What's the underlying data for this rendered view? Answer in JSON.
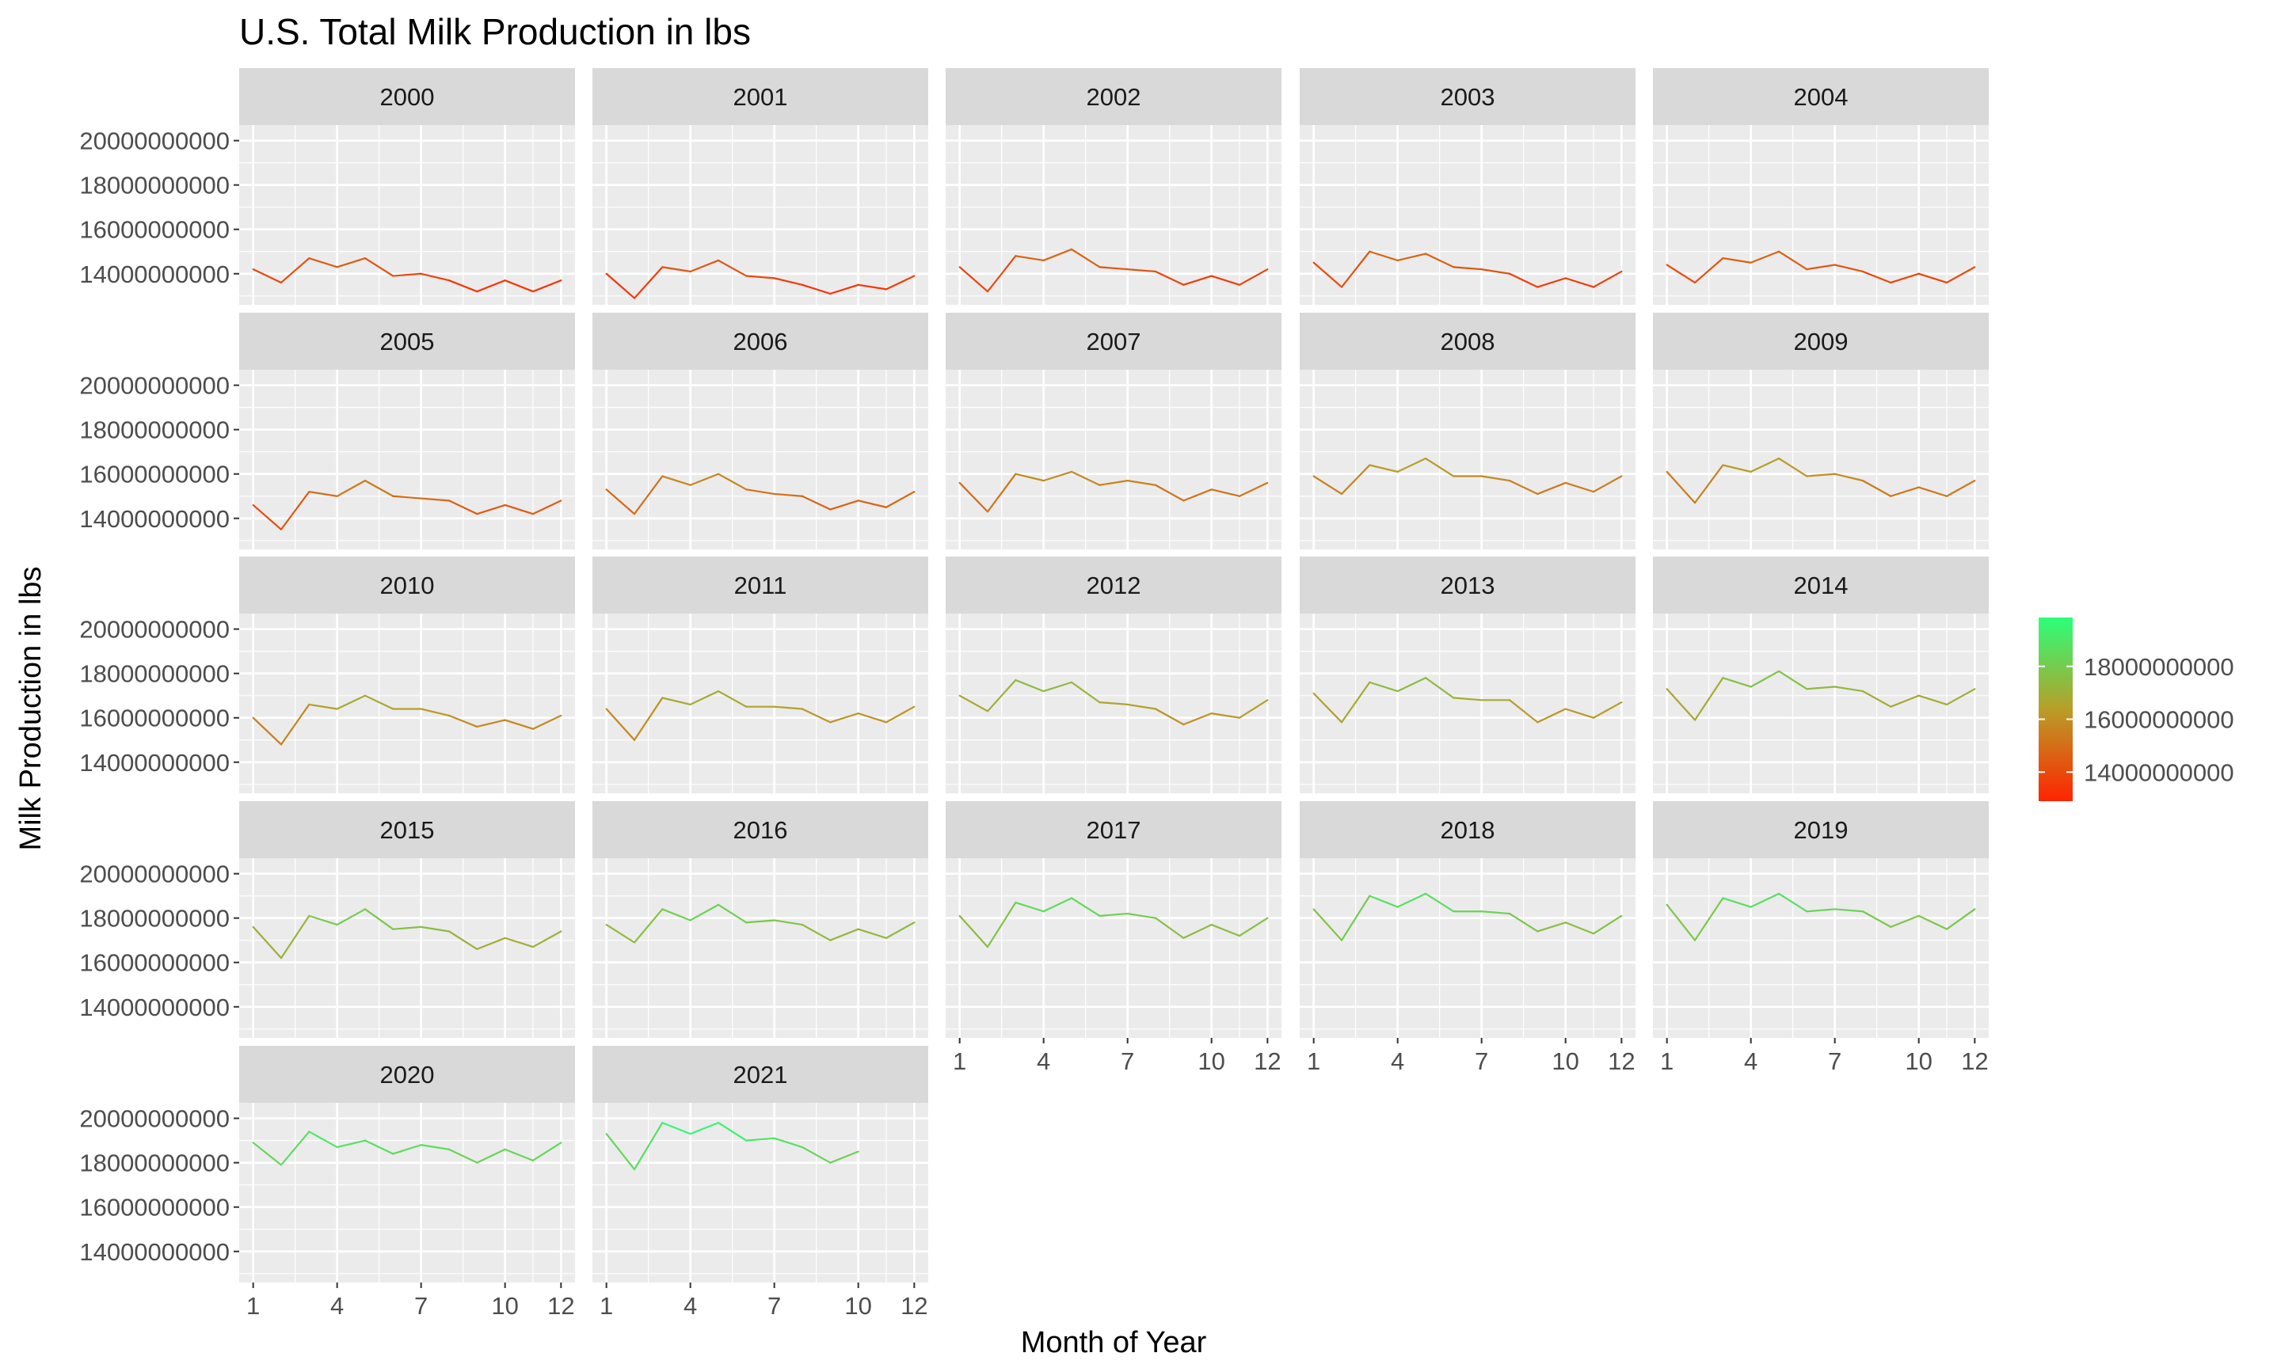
{
  "chart_data": {
    "type": "line",
    "title": "U.S. Total Milk Production in lbs",
    "xlabel": "Month of Year",
    "ylabel": "Milk Production in lbs",
    "x_ticks": [
      "1",
      "4",
      "7",
      "10",
      "12"
    ],
    "y_ticks": [
      "14000000000",
      "16000000000",
      "18000000000",
      "20000000000"
    ],
    "xlim": [
      0.5,
      12.5
    ],
    "ylim": [
      12600000000,
      20700000000
    ],
    "facet_by": "year",
    "color_scale": {
      "low": "#FF2400",
      "high": "#2BFF7A",
      "min": 12900000000,
      "max": 19850000000,
      "legend_ticks": [
        "14000000000",
        "16000000000",
        "18000000000"
      ],
      "legend_position": "right"
    },
    "grid": true,
    "panels": [
      {
        "year": "2000",
        "values": [
          14.2,
          13.6,
          14.7,
          14.3,
          14.7,
          13.9,
          14.0,
          13.7,
          13.2,
          13.7,
          13.2,
          13.7
        ]
      },
      {
        "year": "2001",
        "values": [
          14.0,
          12.9,
          14.3,
          14.1,
          14.6,
          13.9,
          13.8,
          13.5,
          13.1,
          13.5,
          13.3,
          13.9
        ]
      },
      {
        "year": "2002",
        "values": [
          14.3,
          13.2,
          14.8,
          14.6,
          15.1,
          14.3,
          14.2,
          14.1,
          13.5,
          13.9,
          13.5,
          14.2
        ]
      },
      {
        "year": "2003",
        "values": [
          14.5,
          13.4,
          15.0,
          14.6,
          14.9,
          14.3,
          14.2,
          14.0,
          13.4,
          13.8,
          13.4,
          14.1
        ]
      },
      {
        "year": "2004",
        "values": [
          14.4,
          13.6,
          14.7,
          14.5,
          15.0,
          14.2,
          14.4,
          14.1,
          13.6,
          14.0,
          13.6,
          14.3
        ]
      },
      {
        "year": "2005",
        "values": [
          14.6,
          13.5,
          15.2,
          15.0,
          15.7,
          15.0,
          14.9,
          14.8,
          14.2,
          14.6,
          14.2,
          14.8
        ]
      },
      {
        "year": "2006",
        "values": [
          15.3,
          14.2,
          15.9,
          15.5,
          16.0,
          15.3,
          15.1,
          15.0,
          14.4,
          14.8,
          14.5,
          15.2
        ]
      },
      {
        "year": "2007",
        "values": [
          15.6,
          14.3,
          16.0,
          15.7,
          16.1,
          15.5,
          15.7,
          15.5,
          14.8,
          15.3,
          15.0,
          15.6
        ]
      },
      {
        "year": "2008",
        "values": [
          15.9,
          15.1,
          16.4,
          16.1,
          16.7,
          15.9,
          15.9,
          15.7,
          15.1,
          15.6,
          15.2,
          15.9
        ]
      },
      {
        "year": "2009",
        "values": [
          16.1,
          14.7,
          16.4,
          16.1,
          16.7,
          15.9,
          16.0,
          15.7,
          15.0,
          15.4,
          15.0,
          15.7
        ]
      },
      {
        "year": "2010",
        "values": [
          16.0,
          14.8,
          16.6,
          16.4,
          17.0,
          16.4,
          16.4,
          16.1,
          15.6,
          15.9,
          15.5,
          16.1
        ]
      },
      {
        "year": "2011",
        "values": [
          16.4,
          15.0,
          16.9,
          16.6,
          17.2,
          16.5,
          16.5,
          16.4,
          15.8,
          16.2,
          15.8,
          16.5
        ]
      },
      {
        "year": "2012",
        "values": [
          17.0,
          16.3,
          17.7,
          17.2,
          17.6,
          16.7,
          16.6,
          16.4,
          15.7,
          16.2,
          16.0,
          16.8
        ]
      },
      {
        "year": "2013",
        "values": [
          17.1,
          15.8,
          17.6,
          17.2,
          17.8,
          16.9,
          16.8,
          16.8,
          15.8,
          16.4,
          16.0,
          16.7
        ]
      },
      {
        "year": "2014",
        "values": [
          17.3,
          15.9,
          17.8,
          17.4,
          18.1,
          17.3,
          17.4,
          17.2,
          16.5,
          17.0,
          16.6,
          17.3
        ]
      },
      {
        "year": "2015",
        "values": [
          17.6,
          16.2,
          18.1,
          17.7,
          18.4,
          17.5,
          17.6,
          17.4,
          16.6,
          17.1,
          16.7,
          17.4
        ]
      },
      {
        "year": "2016",
        "values": [
          17.7,
          16.9,
          18.4,
          17.9,
          18.6,
          17.8,
          17.9,
          17.7,
          17.0,
          17.5,
          17.1,
          17.8
        ]
      },
      {
        "year": "2017",
        "values": [
          18.1,
          16.7,
          18.7,
          18.3,
          18.9,
          18.1,
          18.2,
          18.0,
          17.1,
          17.7,
          17.2,
          18.0
        ]
      },
      {
        "year": "2018",
        "values": [
          18.4,
          17.0,
          19.0,
          18.5,
          19.1,
          18.3,
          18.3,
          18.2,
          17.4,
          17.8,
          17.3,
          18.1
        ]
      },
      {
        "year": "2019",
        "values": [
          18.6,
          17.0,
          18.9,
          18.5,
          19.1,
          18.3,
          18.4,
          18.3,
          17.6,
          18.1,
          17.5,
          18.4
        ]
      },
      {
        "year": "2020",
        "values": [
          18.9,
          17.9,
          19.4,
          18.7,
          19.0,
          18.4,
          18.8,
          18.6,
          18.0,
          18.6,
          18.1,
          18.9
        ]
      },
      {
        "year": "2021",
        "values": [
          19.3,
          17.7,
          19.8,
          19.3,
          19.8,
          19.0,
          19.1,
          18.7,
          18.0,
          18.5
        ]
      }
    ],
    "value_unit_note_multiplier": 1000000000
  }
}
